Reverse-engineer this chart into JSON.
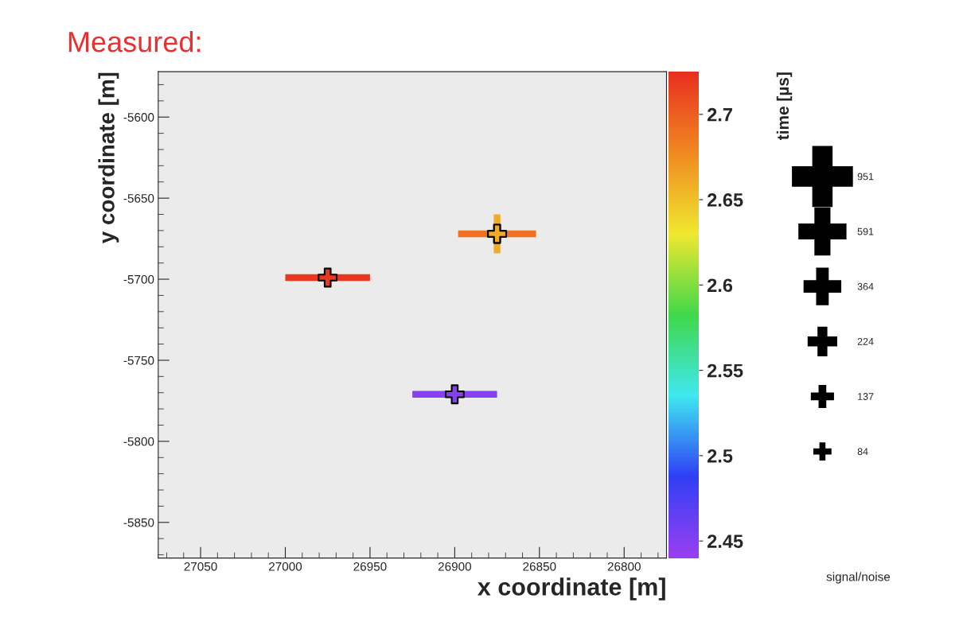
{
  "chart_data": {
    "type": "bubble",
    "title": "Measured:",
    "xlabel": "x coordinate [m]",
    "ylabel": "y coordinate [m]",
    "clabel": "time [µs]",
    "legend_title": "signal/noise",
    "x": [
      26975,
      26875,
      26875,
      26900
    ],
    "values": [
      -5699,
      -5672,
      -5672,
      -5771
    ],
    "cvalues": [
      2.72,
      2.69,
      2.66,
      2.45
    ],
    "xerrors": [
      25,
      23,
      null,
      25
    ],
    "errors": [
      null,
      null,
      12,
      null
    ],
    "sizes": [
      84,
      84,
      84,
      84
    ],
    "size_legend": [
      951,
      591,
      364,
      224,
      137,
      84
    ],
    "marker": "cross",
    "xlim": [
      27075,
      26775
    ],
    "xticks": [
      27050,
      27000,
      26950,
      26900,
      26850,
      26800
    ],
    "ylim": [
      -5872,
      -5572
    ],
    "yticks": [
      -5600,
      -5650,
      -5700,
      -5750,
      -5800,
      -5850
    ],
    "clim": [
      2.44,
      2.725
    ],
    "cticks": [
      2.45,
      2.5,
      2.55,
      2.6,
      2.65,
      2.7
    ],
    "grid": false
  }
}
